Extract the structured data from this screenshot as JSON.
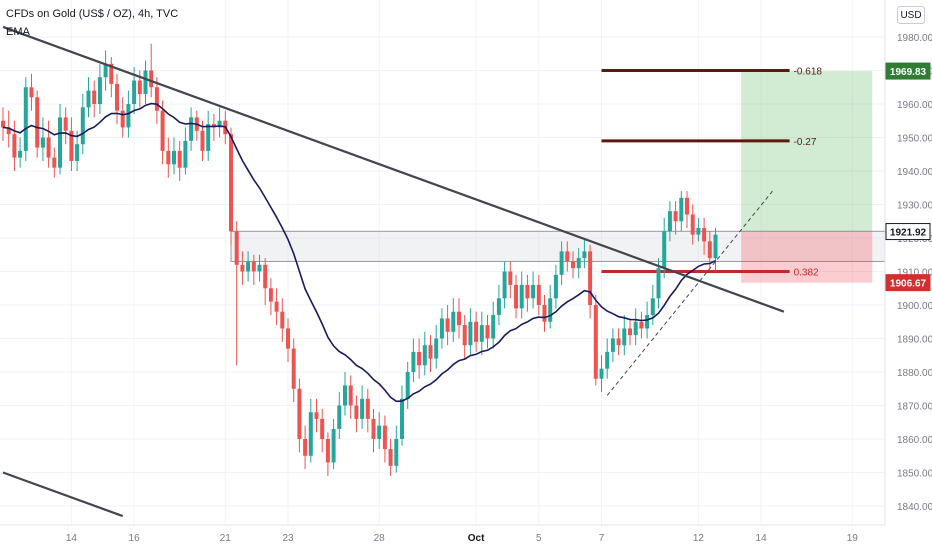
{
  "header": {
    "title": "CFDs on Gold (US$ / OZ), 4h, TVC",
    "indicator": "EMA",
    "currency": "USD"
  },
  "chart_data": {
    "type": "candlestick",
    "ylim": [
      1835,
      1985
    ],
    "y_ticks": [
      1840,
      1850,
      1860,
      1870,
      1880,
      1890,
      1900,
      1910,
      1920,
      1930,
      1940,
      1950,
      1960,
      1970,
      1980
    ],
    "x_ticks": [
      {
        "label": "14",
        "i": 12
      },
      {
        "label": "16",
        "i": 23
      },
      {
        "label": "21",
        "i": 39
      },
      {
        "label": "23",
        "i": 50
      },
      {
        "label": "28",
        "i": 66
      },
      {
        "label": "Oct",
        "i": 83
      },
      {
        "label": "5",
        "i": 94
      },
      {
        "label": "7",
        "i": 105
      },
      {
        "label": "12",
        "i": 122
      },
      {
        "label": "14",
        "i": 133
      },
      {
        "label": "19",
        "i": 149
      }
    ],
    "candles": [
      [
        1955,
        1953,
        1959,
        1949
      ],
      [
        1953,
        1951,
        1958,
        1947
      ],
      [
        1951,
        1944,
        1955,
        1940
      ],
      [
        1944,
        1946,
        1950,
        1941
      ],
      [
        1946,
        1965,
        1968,
        1943
      ],
      [
        1965,
        1962,
        1969,
        1958
      ],
      [
        1962,
        1947,
        1964,
        1944
      ],
      [
        1947,
        1950,
        1956,
        1943
      ],
      [
        1950,
        1944,
        1955,
        1941
      ],
      [
        1944,
        1941,
        1947,
        1938
      ],
      [
        1941,
        1956,
        1960,
        1939
      ],
      [
        1956,
        1952,
        1959,
        1948
      ],
      [
        1952,
        1943,
        1956,
        1940
      ],
      [
        1943,
        1948,
        1952,
        1940
      ],
      [
        1948,
        1959,
        1963,
        1945
      ],
      [
        1959,
        1964,
        1968,
        1956
      ],
      [
        1964,
        1960,
        1967,
        1956
      ],
      [
        1960,
        1968,
        1972,
        1957
      ],
      [
        1968,
        1972,
        1976,
        1964
      ],
      [
        1972,
        1966,
        1974,
        1962
      ],
      [
        1966,
        1958,
        1969,
        1954
      ],
      [
        1958,
        1953,
        1962,
        1950
      ],
      [
        1953,
        1960,
        1964,
        1950
      ],
      [
        1960,
        1967,
        1971,
        1957
      ],
      [
        1967,
        1963,
        1970,
        1959
      ],
      [
        1963,
        1970,
        1973,
        1960
      ],
      [
        1970,
        1965,
        1978,
        1962
      ],
      [
        1965,
        1958,
        1968,
        1954
      ],
      [
        1958,
        1946,
        1961,
        1942
      ],
      [
        1946,
        1942,
        1950,
        1938
      ],
      [
        1942,
        1946,
        1950,
        1939
      ],
      [
        1946,
        1941,
        1949,
        1937
      ],
      [
        1941,
        1949,
        1953,
        1939
      ],
      [
        1949,
        1956,
        1959,
        1946
      ],
      [
        1956,
        1952,
        1958,
        1949
      ],
      [
        1952,
        1946,
        1955,
        1943
      ],
      [
        1946,
        1954,
        1958,
        1943
      ],
      [
        1954,
        1953,
        1957,
        1949
      ],
      [
        1953,
        1955,
        1959,
        1950
      ],
      [
        1955,
        1951,
        1958,
        1948
      ],
      [
        1951,
        1922,
        1953,
        1918
      ],
      [
        1922,
        1912,
        1925,
        1882
      ],
      [
        1912,
        1910,
        1916,
        1906
      ],
      [
        1910,
        1913,
        1916,
        1907
      ],
      [
        1913,
        1910,
        1915,
        1906
      ],
      [
        1910,
        1912,
        1915,
        1907
      ],
      [
        1912,
        1905,
        1914,
        1900
      ],
      [
        1905,
        1901,
        1908,
        1897
      ],
      [
        1901,
        1898,
        1905,
        1894
      ],
      [
        1898,
        1893,
        1902,
        1889
      ],
      [
        1893,
        1887,
        1896,
        1883
      ],
      [
        1887,
        1875,
        1890,
        1871
      ],
      [
        1875,
        1860,
        1878,
        1856
      ],
      [
        1860,
        1855,
        1864,
        1851
      ],
      [
        1855,
        1868,
        1872,
        1853
      ],
      [
        1868,
        1866,
        1872,
        1862
      ],
      [
        1866,
        1860,
        1869,
        1856
      ],
      [
        1860,
        1853,
        1862,
        1849
      ],
      [
        1853,
        1863,
        1866,
        1851
      ],
      [
        1863,
        1870,
        1874,
        1860
      ],
      [
        1870,
        1876,
        1880,
        1867
      ],
      [
        1876,
        1870,
        1879,
        1866
      ],
      [
        1870,
        1866,
        1873,
        1862
      ],
      [
        1866,
        1872,
        1876,
        1863
      ],
      [
        1872,
        1866,
        1875,
        1862
      ],
      [
        1866,
        1860,
        1869,
        1856
      ],
      [
        1860,
        1864,
        1868,
        1857
      ],
      [
        1864,
        1857,
        1867,
        1853
      ],
      [
        1857,
        1852,
        1860,
        1849
      ],
      [
        1852,
        1860,
        1864,
        1850
      ],
      [
        1860,
        1872,
        1876,
        1858
      ],
      [
        1872,
        1880,
        1883,
        1869
      ],
      [
        1880,
        1886,
        1890,
        1877
      ],
      [
        1886,
        1882,
        1890,
        1878
      ],
      [
        1882,
        1888,
        1892,
        1879
      ],
      [
        1888,
        1884,
        1891,
        1880
      ],
      [
        1884,
        1890,
        1894,
        1881
      ],
      [
        1890,
        1896,
        1899,
        1887
      ],
      [
        1896,
        1892,
        1900,
        1888
      ],
      [
        1892,
        1898,
        1902,
        1889
      ],
      [
        1898,
        1894,
        1902,
        1890
      ],
      [
        1894,
        1888,
        1897,
        1884
      ],
      [
        1888,
        1895,
        1899,
        1885
      ],
      [
        1895,
        1889,
        1898,
        1886
      ],
      [
        1889,
        1894,
        1898,
        1885
      ],
      [
        1894,
        1890,
        1897,
        1887
      ],
      [
        1890,
        1897,
        1901,
        1887
      ],
      [
        1897,
        1902,
        1906,
        1894
      ],
      [
        1902,
        1910,
        1913,
        1899
      ],
      [
        1910,
        1906,
        1913,
        1902
      ],
      [
        1906,
        1899,
        1909,
        1896
      ],
      [
        1899,
        1906,
        1910,
        1896
      ],
      [
        1906,
        1902,
        1909,
        1898
      ],
      [
        1902,
        1906,
        1910,
        1899
      ],
      [
        1906,
        1900,
        1909,
        1897
      ],
      [
        1900,
        1895,
        1903,
        1892
      ],
      [
        1895,
        1902,
        1906,
        1893
      ],
      [
        1902,
        1909,
        1912,
        1899
      ],
      [
        1909,
        1916,
        1919,
        1906
      ],
      [
        1916,
        1913,
        1919,
        1910
      ],
      [
        1913,
        1911,
        1916,
        1908
      ],
      [
        1911,
        1914,
        1917,
        1908
      ],
      [
        1914,
        1916,
        1920,
        1911
      ],
      [
        1916,
        1900,
        1918,
        1896
      ],
      [
        1900,
        1878,
        1903,
        1876
      ],
      [
        1878,
        1881,
        1885,
        1874
      ],
      [
        1881,
        1886,
        1890,
        1878
      ],
      [
        1886,
        1890,
        1893,
        1883
      ],
      [
        1890,
        1888,
        1893,
        1885
      ],
      [
        1888,
        1893,
        1897,
        1885
      ],
      [
        1893,
        1891,
        1896,
        1888
      ],
      [
        1891,
        1895,
        1899,
        1888
      ],
      [
        1895,
        1893,
        1898,
        1890
      ],
      [
        1893,
        1897,
        1901,
        1890
      ],
      [
        1897,
        1902,
        1906,
        1894
      ],
      [
        1902,
        1911,
        1914,
        1899
      ],
      [
        1911,
        1922,
        1926,
        1908
      ],
      [
        1922,
        1928,
        1931,
        1919
      ],
      [
        1928,
        1925,
        1931,
        1921
      ],
      [
        1925,
        1932,
        1934,
        1922
      ],
      [
        1932,
        1927,
        1934,
        1923
      ],
      [
        1927,
        1921,
        1930,
        1918
      ],
      [
        1921,
        1923,
        1926,
        1919
      ],
      [
        1923,
        1919,
        1926,
        1915
      ],
      [
        1919,
        1914,
        1922,
        1911
      ],
      [
        1914,
        1921,
        1923,
        1910
      ]
    ],
    "ema_series_label": "EMA",
    "trendlines": [
      {
        "from": {
          "i": 0,
          "y": 1983
        },
        "to": {
          "i": 137,
          "y": 1898
        },
        "color": "#434651"
      },
      {
        "from": {
          "i": 0,
          "y": 1850
        },
        "to": {
          "i": 21,
          "y": 1837
        },
        "color": "#434651"
      },
      {
        "from": {
          "i": 106,
          "y": 1873
        },
        "to": {
          "i": 135,
          "y": 1934
        },
        "color": "#434651",
        "dashed": true
      }
    ],
    "fib_levels": [
      {
        "label": "-0.618",
        "value": 1970,
        "i_from": 105,
        "i_to": 138,
        "color": "#5a1a0e"
      },
      {
        "label": "-0.27",
        "value": 1949,
        "i_from": 105,
        "i_to": 138,
        "color": "#5a1a0e"
      },
      {
        "label": "0.382",
        "value": 1910,
        "i_from": 105,
        "i_to": 138,
        "color": "#c62828"
      }
    ],
    "zone": {
      "y_top": 1922,
      "y_bottom": 1913,
      "i_from": 40,
      "i_to": 159
    },
    "position": {
      "i_from": 129.5,
      "i_to": 152.5,
      "entry": 1921.92,
      "target": 1969.83,
      "stop": 1906.67,
      "profit_color": "#4caf50",
      "loss_color": "#f23645"
    },
    "price_labels": [
      {
        "text": "1969.83",
        "value": 1969.83,
        "bg": "#2e7d32",
        "fg": "#ffffff"
      },
      {
        "text": "1921.92",
        "value": 1921.92,
        "bg": "#ffffff",
        "fg": "#131722",
        "border": "#131722"
      },
      {
        "text": "1906.67",
        "value": 1906.67,
        "bg": "#d32f2f",
        "fg": "#ffffff"
      }
    ],
    "colors": {
      "up": "#26a69a",
      "down": "#ef5350",
      "ema": "#1a1a5e",
      "grid": "#f0f3fa",
      "axis": "#787b86"
    }
  }
}
